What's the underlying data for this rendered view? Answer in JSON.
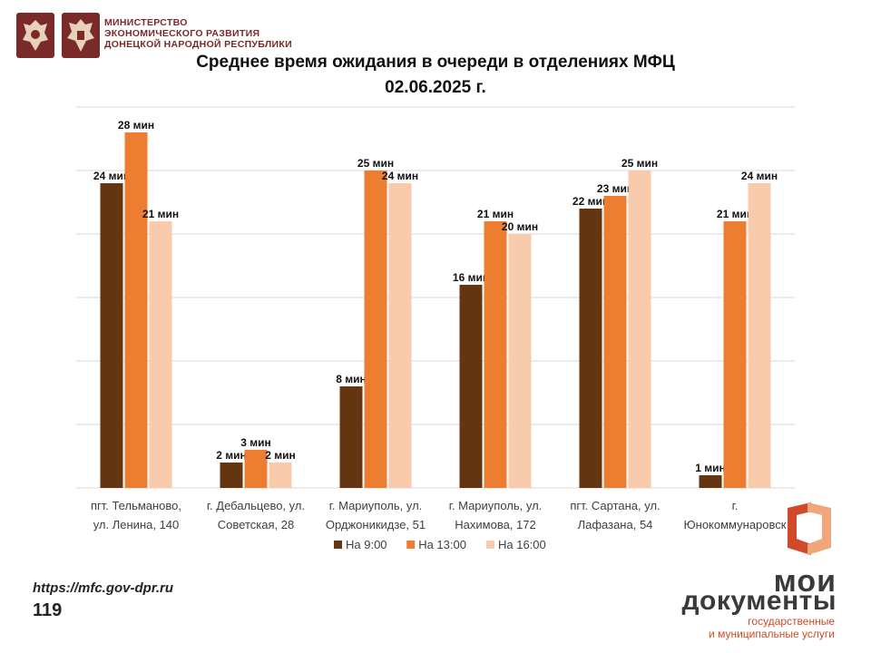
{
  "header": {
    "ministry_line1": "МИНИСТЕРСТВО",
    "ministry_line2": "ЭКОНОМИЧЕСКОГО РАЗВИТИЯ",
    "ministry_line3": "ДОНЕЦКОЙ НАРОДНОЙ РЕСПУБЛИКИ",
    "emblem_icons": [
      "russia-coat-of-arms-icon",
      "dpr-coat-of-arms-icon"
    ]
  },
  "colors": {
    "series_9": "#633511",
    "series_13": "#ED7D31",
    "series_16": "#F8CBAD",
    "emblem_bg": "#7b2a2a",
    "brand_red": "#d04a2a"
  },
  "chart_data": {
    "type": "bar",
    "title": "Среднее время ожидания в очереди в отделениях МФЦ",
    "subtitle": "02.06.2025   г.",
    "categories": [
      [
        "пгт. Тельманово,",
        "ул. Ленина, 140"
      ],
      [
        "г. Дебальцево, ул.",
        "Советская, 28"
      ],
      [
        "г. Мариуполь, ул.",
        "Орджоникидзе, 51"
      ],
      [
        "г. Мариуполь, ул.",
        "Нахимова, 172"
      ],
      [
        "пгт. Сартана, ул.",
        "Лафазана, 54"
      ],
      [
        "г.",
        "Юнокоммунаровск"
      ]
    ],
    "series": [
      {
        "name": "На 9:00",
        "values": [
          24,
          2,
          8,
          16,
          22,
          1
        ],
        "labels": [
          "24 мин",
          "2 мин",
          "8 мин",
          "16 мин",
          "22 мин",
          "1 мин"
        ]
      },
      {
        "name": "На 13:00",
        "values": [
          28,
          3,
          25,
          21,
          23,
          21
        ],
        "labels": [
          "28 мин",
          "3 мин",
          "25  мин",
          "21 мин",
          "23 мин",
          "21 мин"
        ]
      },
      {
        "name": "На 16:00",
        "values": [
          21,
          2,
          24,
          20,
          25,
          24
        ],
        "labels": [
          "21 мин",
          "2 мин",
          "24 мин",
          "20 мин",
          "25 мин",
          "24 мин"
        ]
      }
    ],
    "ylim": [
      0,
      30
    ],
    "grid": true,
    "legend": "bottom"
  },
  "footer": {
    "url": "https://mfc.gov-dpr.ru",
    "page_number": "119"
  },
  "brand": {
    "logo_icon": "mfc-logo-icon",
    "word1": "мои",
    "word2": "документы",
    "sub1": "государственные",
    "sub2": "и муниципальные услуги"
  }
}
